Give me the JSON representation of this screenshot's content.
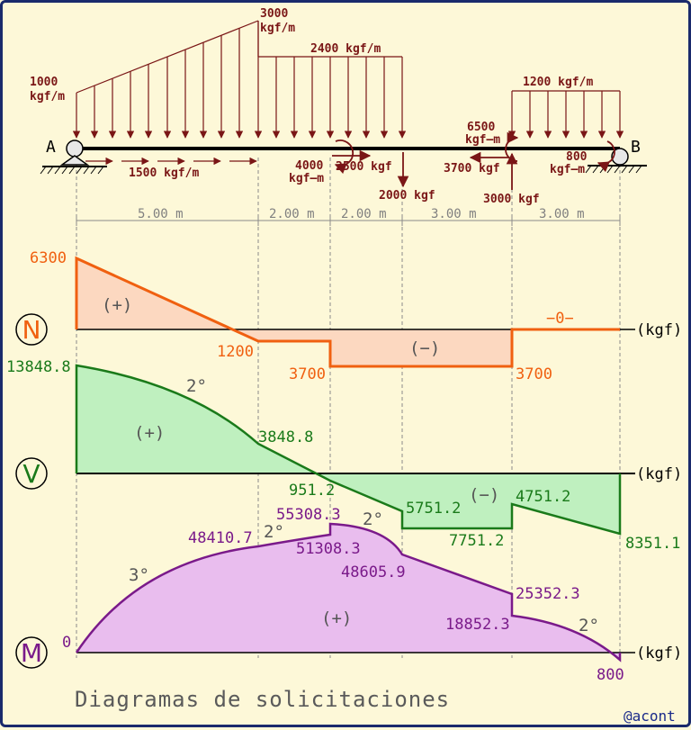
{
  "colors": {
    "background": "#fdf8d8",
    "frame": "#1a2a6c",
    "load": "#7a1616",
    "normal": "#f06010",
    "normal_fill": "#fcd8c0",
    "shear": "#1a7a1a",
    "shear_fill": "#bff0bf",
    "moment": "#7a1a8a",
    "moment_fill": "#e9bdee"
  },
  "supports": {
    "left": "A",
    "right": "B"
  },
  "loads": {
    "dist_start": {
      "value": "1000",
      "unit": "kgf/m"
    },
    "dist_peak": {
      "value": "3000",
      "unit": "kgf/m"
    },
    "dist_uniform": "2400 kgf/m",
    "dist_right": "1200 kgf/m",
    "axial_dist": "1500 kgf/m",
    "moment_4000": {
      "value": "4000",
      "unit": "kgf–m"
    },
    "force_2500": "2500 kgf",
    "force_2000": "2000 kgf",
    "moment_6500": {
      "value": "6500",
      "unit": "kgf–m"
    },
    "force_3700": "3700 kgf",
    "force_3000": "3000 kgf",
    "moment_800": {
      "value": "800",
      "unit": "kgf–m"
    }
  },
  "dimensions": [
    "5.00 m",
    "2.00 m",
    "2.00 m",
    "3.00 m",
    "3.00 m"
  ],
  "diagrams": {
    "normal": {
      "symbol": "N",
      "unit": "(kgf)",
      "labels": {
        "v6300": "6300",
        "v1200": "1200",
        "v3700a": "3700",
        "v3700b": "3700",
        "zero": "−0−",
        "plus": "(+)",
        "minus": "(−)"
      },
      "values_kgf": [
        {
          "x_m": 0,
          "value": 6300
        },
        {
          "x_m": 5,
          "value": -1200
        },
        {
          "x_m": 7,
          "value": -1200
        },
        {
          "x_m": 7,
          "value": -3700
        },
        {
          "x_m": 12,
          "value": -3700
        },
        {
          "x_m": 12,
          "value": 0
        },
        {
          "x_m": 15,
          "value": 0
        }
      ]
    },
    "shear": {
      "symbol": "V",
      "unit": "(kgf)",
      "labels": {
        "v13848": "13848.8",
        "v3848": "3848.8",
        "v951": "951.2",
        "v5751": "5751.2",
        "v7751": "7751.2",
        "v4751": "4751.2",
        "v8351": "8351.1",
        "degree": "2°",
        "plus": "(+)",
        "minus": "(−)"
      },
      "values_kgf": [
        {
          "x_m": 0,
          "value": 13848.8
        },
        {
          "x_m": 5,
          "value": 3848.8
        },
        {
          "x_m": 7,
          "value": -951.2
        },
        {
          "x_m": 9,
          "value": -5751.2
        },
        {
          "x_m": 9,
          "value": -7751.2
        },
        {
          "x_m": 12,
          "value": -7751.2
        },
        {
          "x_m": 12,
          "value": -4751.2
        },
        {
          "x_m": 15,
          "value": -8351.1
        }
      ]
    },
    "moment": {
      "symbol": "M",
      "unit": "(kgf)",
      "labels": {
        "v0": "0",
        "v48410": "48410.7",
        "v55308": "55308.3",
        "v51308": "51308.3",
        "v48605": "48605.9",
        "v25352": "25352.3",
        "v18852": "18852.3",
        "v800": "800",
        "deg3": "3°",
        "deg2a": "2°",
        "deg2b": "2°",
        "deg2c": "2°",
        "plus": "(+)"
      },
      "values": [
        {
          "x_m": 0,
          "value": 0
        },
        {
          "x_m": 5,
          "value": 48410.7
        },
        {
          "x_m": 7,
          "value": 51308.3
        },
        {
          "x_m": 7,
          "value": 55308.3
        },
        {
          "x_m": 9,
          "value": 48605.9
        },
        {
          "x_m": 12,
          "value": 25352.3
        },
        {
          "x_m": 12,
          "value": 18852.3
        },
        {
          "x_m": 15,
          "value": -800
        }
      ]
    }
  },
  "title": "Diagramas de solicitaciones",
  "credit": "@acont"
}
